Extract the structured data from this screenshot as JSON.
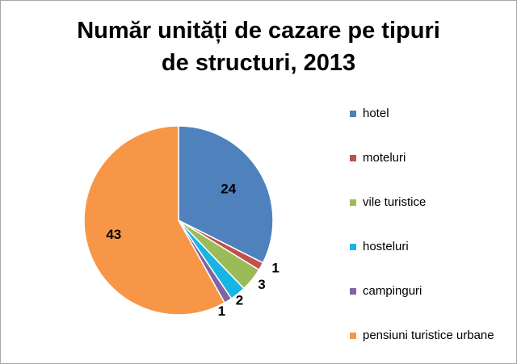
{
  "chart_data": {
    "type": "pie",
    "title_lines": [
      "Număr unități de cazare pe tipuri",
      "de structuri, 2013"
    ],
    "legend_position": "right",
    "slices": [
      {
        "label": "hotel",
        "value": 24,
        "color": "#4f81bd"
      },
      {
        "label": "moteluri",
        "value": 1,
        "color": "#c0504d"
      },
      {
        "label": "vile turistice",
        "value": 3,
        "color": "#9bbb59"
      },
      {
        "label": "hosteluri",
        "value": 2,
        "color": "#17b5e6"
      },
      {
        "label": "campinguri",
        "value": 1,
        "color": "#8064a2"
      },
      {
        "label": "pensiuni turistice urbane",
        "value": 43,
        "color": "#f79646"
      }
    ]
  }
}
